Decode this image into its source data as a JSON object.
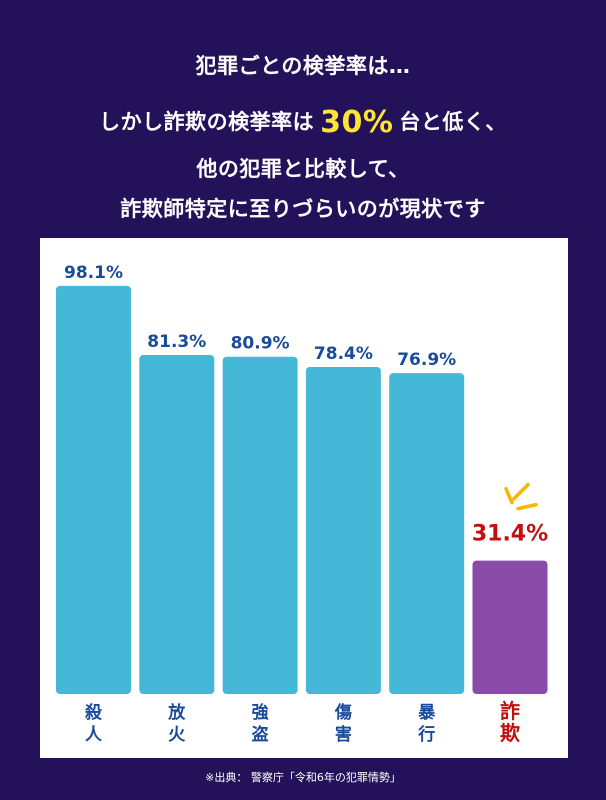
{
  "header": {
    "line1": "犯罪ごとの検挙率は…",
    "line2_pre": "しかし詐欺の検挙率は",
    "line2_accent": "30%",
    "line2_post": "台と低く、",
    "line3": "他の犯罪と比較して、",
    "line4": "詐欺師特定に至りづらいのが現状です"
  },
  "colors": {
    "background": "#23125a",
    "bar": "#45b8d8",
    "highlight_bar": "#8a4aa8",
    "label": "#1a4a9a",
    "highlight_label": "#c01010",
    "accent_text": "#ffe433",
    "spark": "#f5b800"
  },
  "chart_data": {
    "type": "bar",
    "categories": [
      "殺人",
      "放火",
      "強盗",
      "傷害",
      "暴行",
      "詐欺"
    ],
    "values": [
      98.1,
      81.3,
      80.9,
      78.4,
      76.9,
      31.4
    ],
    "value_labels": [
      "98.1%",
      "81.3%",
      "80.9%",
      "78.4%",
      "76.9%",
      "31.4%"
    ],
    "highlight": "詐欺",
    "ylim": [
      0,
      100
    ],
    "grid": false,
    "title": "",
    "xlabel": "",
    "ylabel": ""
  },
  "footer": {
    "source": "※出典： 警察庁「令和6年の犯罪情勢」"
  }
}
